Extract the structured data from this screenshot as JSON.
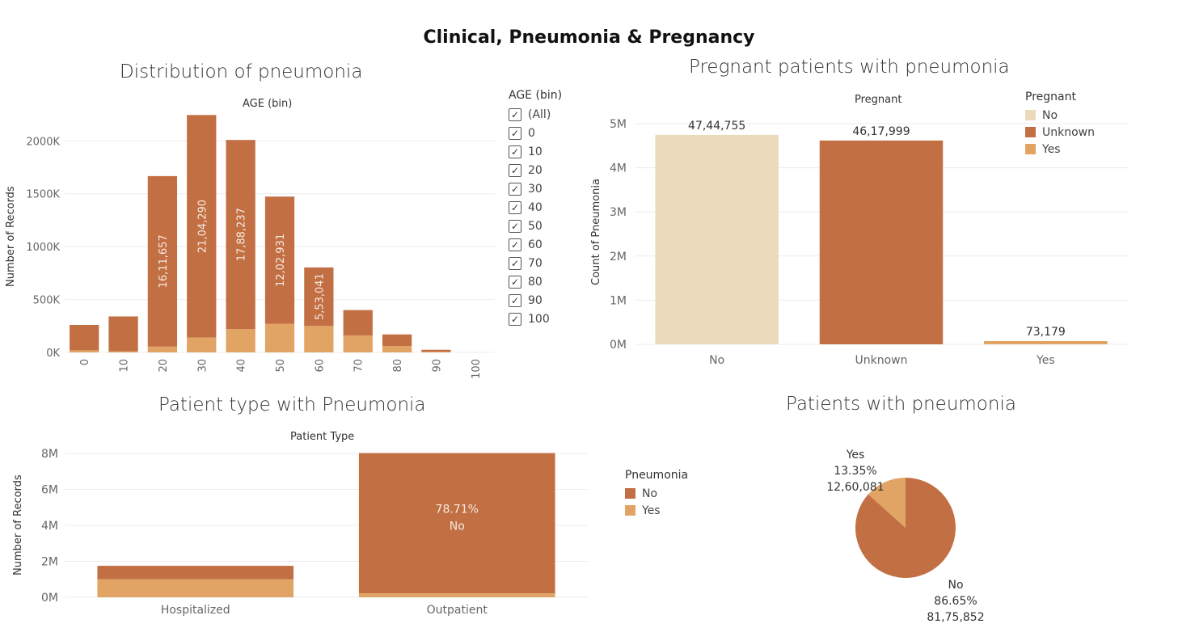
{
  "dashboard": {
    "title": "Clinical, Pneumonia & Pregnancy"
  },
  "colors": {
    "no": "#c36f44",
    "yes": "#e1a464",
    "pregnant_no": "#ecdabd",
    "grid": "#ececec",
    "axis_text": "#666666"
  },
  "age_filter": {
    "title": "AGE (bin)",
    "check_icon": "check-icon",
    "items": [
      "(All)",
      "0",
      "10",
      "20",
      "30",
      "40",
      "50",
      "60",
      "70",
      "80",
      "90",
      "100"
    ]
  },
  "pregnant_legend": {
    "title": "Pregnant",
    "items": [
      {
        "label": "No"
      },
      {
        "label": "Unknown"
      },
      {
        "label": "Yes"
      }
    ]
  },
  "pneumonia_legend": {
    "title": "Pneumonia",
    "items": [
      {
        "label": "No"
      },
      {
        "label": "Yes"
      }
    ]
  },
  "chart_data": [
    {
      "id": "age",
      "type": "bar",
      "stacked": true,
      "title": "Distribution of pneumonia",
      "column_header": "AGE (bin)",
      "ylabel": "Number of Records",
      "ylim": [
        0,
        2300000
      ],
      "yticks": [
        {
          "v": 0,
          "label": "0K"
        },
        {
          "v": 500000,
          "label": "500K"
        },
        {
          "v": 1000000,
          "label": "1000K"
        },
        {
          "v": 1500000,
          "label": "1500K"
        },
        {
          "v": 2000000,
          "label": "2000K"
        }
      ],
      "categories": [
        "0",
        "10",
        "20",
        "30",
        "40",
        "50",
        "60",
        "70",
        "80",
        "90",
        "100"
      ],
      "series": [
        {
          "key": "yes",
          "values": [
            20000,
            10000,
            55000,
            140000,
            220000,
            270000,
            250000,
            160000,
            60000,
            5000,
            0
          ]
        },
        {
          "key": "no",
          "values": [
            240000,
            330000,
            1611657,
            2104290,
            1788237,
            1202931,
            553041,
            240000,
            110000,
            20000,
            0
          ]
        }
      ],
      "bar_labels": [
        "",
        "",
        "16,11,657",
        "21,04,290",
        "17,88,237",
        "12,02,931",
        "5,53,041",
        "",
        "",
        "",
        ""
      ],
      "grid": true
    },
    {
      "id": "pregnant",
      "type": "bar",
      "title": "Pregnant patients with pneumonia",
      "column_header": "Pregnant",
      "ylabel": "Count of Pneumonia",
      "ylim": [
        0,
        5000000
      ],
      "yticks": [
        {
          "v": 0,
          "label": "0M"
        },
        {
          "v": 1000000,
          "label": "1M"
        },
        {
          "v": 2000000,
          "label": "2M"
        },
        {
          "v": 3000000,
          "label": "3M"
        },
        {
          "v": 4000000,
          "label": "4M"
        },
        {
          "v": 5000000,
          "label": "5M"
        }
      ],
      "categories": [
        "No",
        "Unknown",
        "Yes"
      ],
      "values": [
        4744755,
        4617999,
        73179
      ],
      "value_labels": [
        "47,44,755",
        "46,17,999",
        "73,179"
      ],
      "bar_colors": [
        "#ecdabd",
        "#c36f44",
        "#e1a464"
      ],
      "legend": "top-right",
      "grid": true
    },
    {
      "id": "patient_type",
      "type": "bar",
      "stacked": true,
      "title": "Patient type with Pneumonia",
      "column_header": "Patient Type",
      "ylabel": "Number of Records",
      "ylim": [
        0,
        8000000
      ],
      "yticks": [
        {
          "v": 0,
          "label": "0M"
        },
        {
          "v": 2000000,
          "label": "2M"
        },
        {
          "v": 4000000,
          "label": "4M"
        },
        {
          "v": 6000000,
          "label": "6M"
        },
        {
          "v": 8000000,
          "label": "8M"
        }
      ],
      "categories": [
        "Hospitalized",
        "Outpatient"
      ],
      "series": [
        {
          "key": "yes",
          "values": [
            1000000,
            220000
          ]
        },
        {
          "key": "no",
          "values": [
            750000,
            7800000
          ]
        }
      ],
      "annotation": {
        "category": "Outpatient",
        "line1": "78.71%",
        "line2": "No"
      },
      "grid": true
    },
    {
      "id": "pneumonia_pie",
      "type": "pie",
      "title": "Patients with pneumonia",
      "slices": [
        {
          "label": "No",
          "percent": "86.65%",
          "value": 8175852,
          "value_label": "81,75,852",
          "share": 0.8665
        },
        {
          "label": "Yes",
          "percent": "13.35%",
          "value": 1260081,
          "value_label": "12,60,081",
          "share": 0.1335
        }
      ],
      "legend": "left"
    }
  ]
}
